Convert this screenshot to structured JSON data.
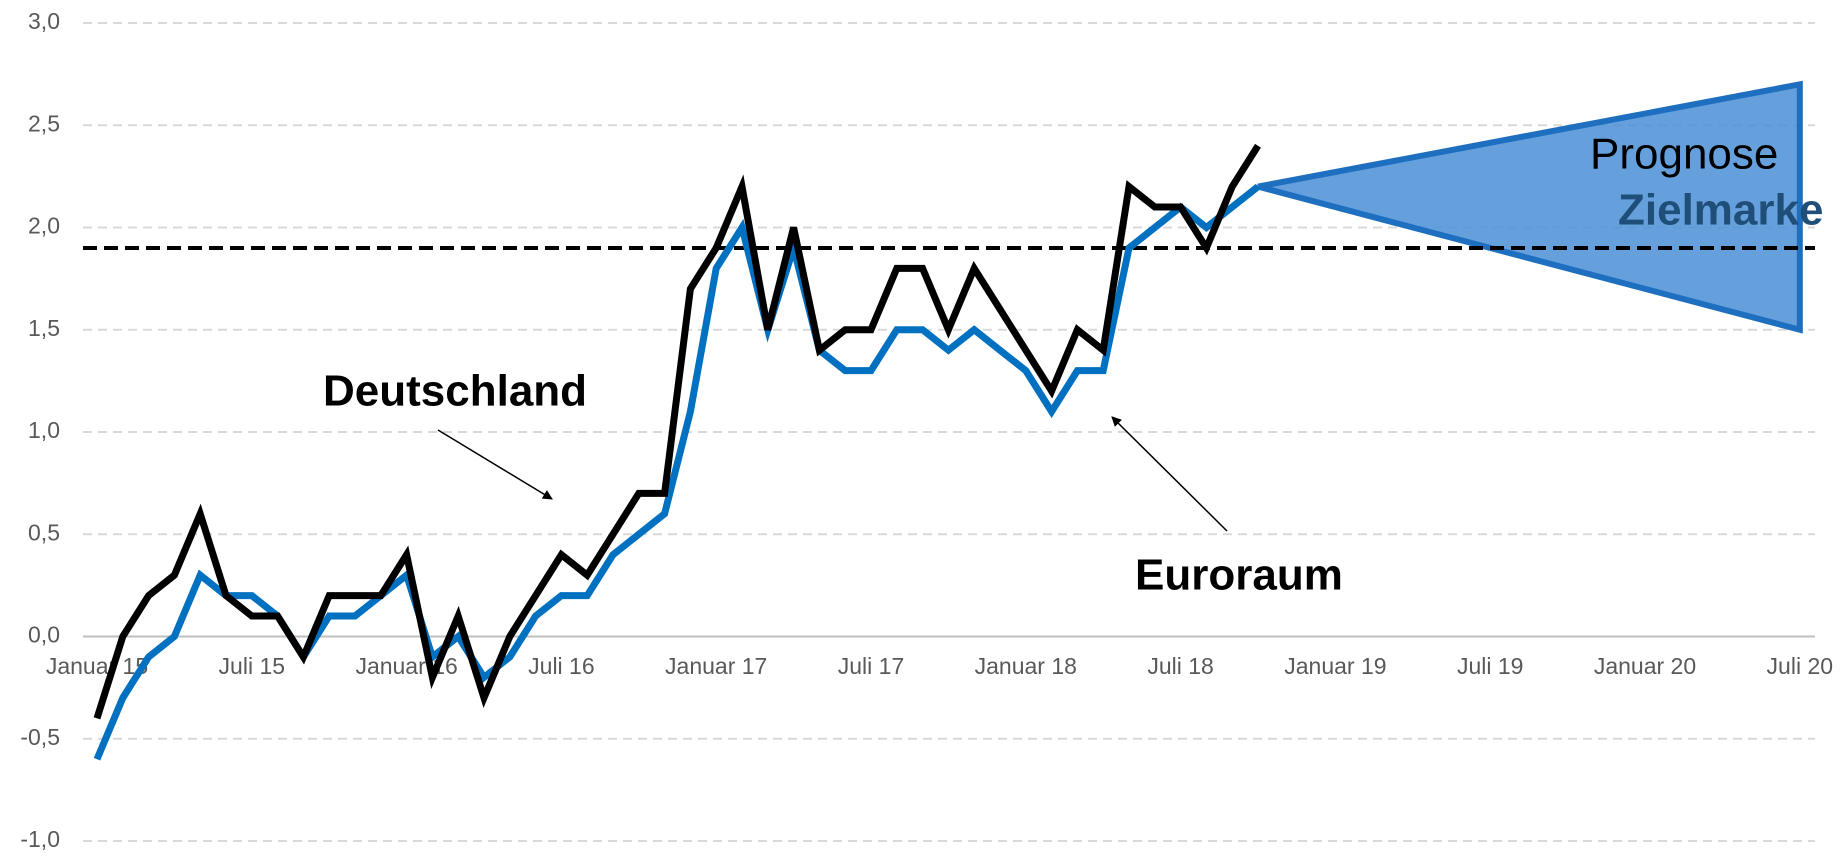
{
  "chart_data": {
    "type": "line",
    "categories": [
      "Januar 15",
      null,
      null,
      null,
      null,
      null,
      "Juli 15",
      null,
      null,
      null,
      null,
      null,
      "Januar 16",
      null,
      null,
      null,
      null,
      null,
      "Juli 16",
      null,
      null,
      null,
      null,
      null,
      "Januar 17",
      null,
      null,
      null,
      null,
      null,
      "Juli 17",
      null,
      null,
      null,
      null,
      null,
      "Januar 18",
      null,
      null,
      null,
      null,
      null,
      "Juli 18",
      null,
      null,
      null,
      null,
      null,
      "Januar 19",
      null,
      null,
      null,
      null,
      null,
      "Juli 19",
      null,
      null,
      null,
      null,
      null,
      "Januar 20",
      null,
      null,
      null,
      null,
      null,
      "Juli 20"
    ],
    "series": [
      {
        "color": "#0070c0",
        "values": [
          -0.6,
          -0.3,
          -0.1,
          0.0,
          0.3,
          0.2,
          0.2,
          0.1,
          -0.1,
          0.1,
          0.1,
          0.2,
          0.3,
          -0.1,
          0.0,
          -0.2,
          -0.1,
          0.1,
          0.2,
          0.2,
          0.4,
          0.5,
          0.6,
          1.1,
          1.8,
          2.0,
          1.5,
          1.9,
          1.4,
          1.3,
          1.3,
          1.5,
          1.5,
          1.4,
          1.5,
          1.4,
          1.3,
          1.1,
          1.3,
          1.3,
          1.9,
          2.0,
          2.1,
          2.0,
          2.1,
          2.2,
          null,
          null,
          null,
          null,
          null,
          null,
          null,
          null,
          null,
          null,
          null,
          null,
          null,
          null,
          null,
          null,
          null,
          null,
          null,
          null,
          null
        ]
      },
      {
        "color": "#000000",
        "values": [
          -0.4,
          0.0,
          0.2,
          0.3,
          0.6,
          0.2,
          0.1,
          0.1,
          -0.1,
          0.2,
          0.2,
          0.2,
          0.4,
          -0.2,
          0.1,
          -0.3,
          0.0,
          0.2,
          0.4,
          0.3,
          0.5,
          0.7,
          0.7,
          1.7,
          1.9,
          2.2,
          1.5,
          2.0,
          1.4,
          1.5,
          1.5,
          1.8,
          1.8,
          1.5,
          1.8,
          1.6,
          1.4,
          1.2,
          1.5,
          1.4,
          2.2,
          2.1,
          2.1,
          1.9,
          2.2,
          2.4,
          null,
          null,
          null,
          null,
          null,
          null,
          null,
          null,
          null,
          null,
          null,
          null,
          null,
          null,
          null,
          null,
          null,
          null,
          null,
          null,
          null
        ]
      }
    ],
    "forecast_band": {
      "fill": "#4a8fd6",
      "stroke": "#1f6fc0",
      "upper": [
        null,
        null,
        null,
        null,
        null,
        null,
        null,
        null,
        null,
        null,
        null,
        null,
        null,
        null,
        null,
        null,
        null,
        null,
        null,
        null,
        null,
        null,
        null,
        null,
        null,
        null,
        null,
        null,
        null,
        null,
        null,
        null,
        null,
        null,
        null,
        null,
        null,
        null,
        null,
        null,
        null,
        null,
        null,
        null,
        null,
        2.2,
        null,
        null,
        null,
        null,
        null,
        null,
        null,
        null,
        null,
        null,
        null,
        null,
        null,
        null,
        null,
        null,
        null,
        null,
        null,
        null,
        2.7
      ],
      "lower": [
        null,
        null,
        null,
        null,
        null,
        null,
        null,
        null,
        null,
        null,
        null,
        null,
        null,
        null,
        null,
        null,
        null,
        null,
        null,
        null,
        null,
        null,
        null,
        null,
        null,
        null,
        null,
        null,
        null,
        null,
        null,
        null,
        null,
        null,
        null,
        null,
        null,
        null,
        null,
        null,
        null,
        null,
        null,
        null,
        null,
        2.2,
        null,
        null,
        null,
        null,
        null,
        null,
        null,
        null,
        null,
        null,
        null,
        null,
        null,
        null,
        null,
        null,
        null,
        null,
        null,
        null,
        1.5
      ]
    },
    "target": 1.9,
    "annotations": [
      "Deutschland",
      "Euroraum",
      "Prognose",
      "Zielmarke"
    ],
    "ylim": [
      -1.0,
      3.0
    ],
    "yticks": [
      {
        "value": -1.0,
        "label": "-1,0"
      },
      {
        "value": -0.5,
        "label": "-0,5"
      },
      {
        "value": 0.0,
        "label": "0,0"
      },
      {
        "value": 0.5,
        "label": "0,5"
      },
      {
        "value": 1.0,
        "label": "1,0"
      },
      {
        "value": 1.5,
        "label": "1,5"
      },
      {
        "value": 2.0,
        "label": "2,0"
      },
      {
        "value": 2.5,
        "label": "2,5"
      },
      {
        "value": 3.0,
        "label": "3,0"
      }
    ],
    "grid": true
  }
}
